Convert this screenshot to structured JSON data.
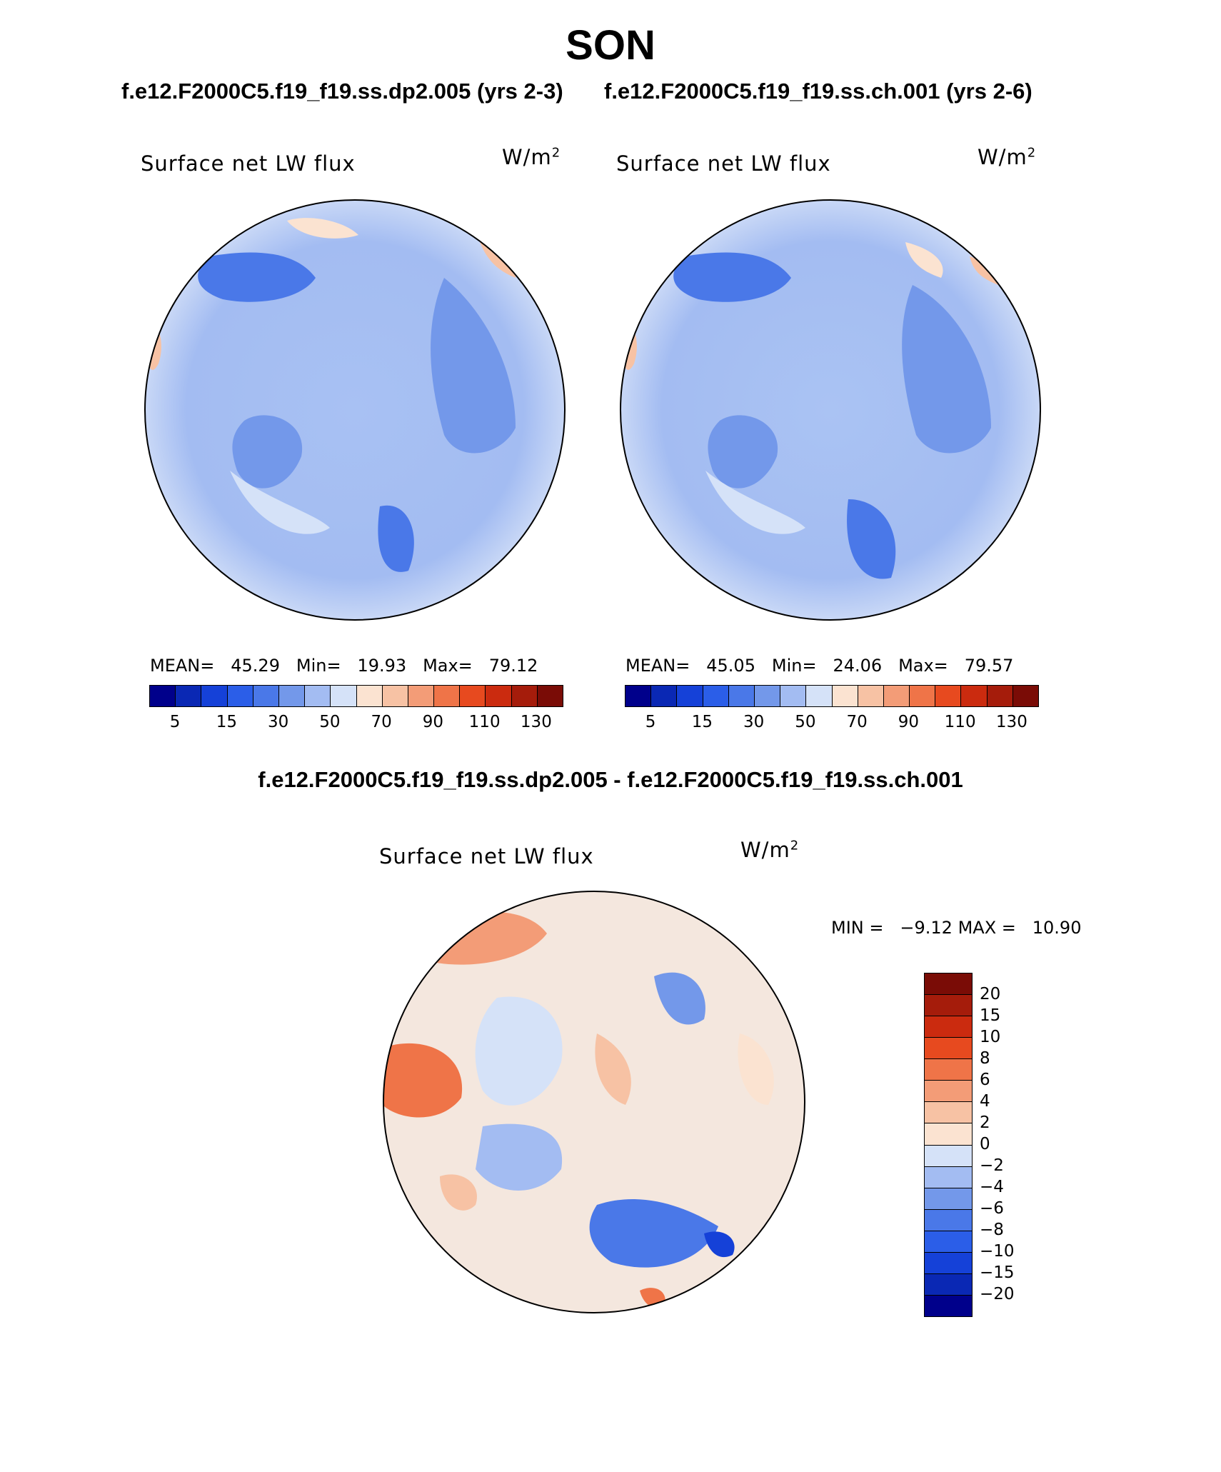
{
  "figure": {
    "title": "SON",
    "subtitle_left": "f.e12.F2000C5.f19_f19.ss.dp2.005 (yrs 2-3)",
    "subtitle_right": "f.e12.F2000C5.f19_f19.ss.ch.001 (yrs 2-6)",
    "difference_title": "f.e12.F2000C5.f19_f19.ss.dp2.005 - f.e12.F2000C5.f19_f19.ss.ch.001"
  },
  "panels": [
    {
      "variable": "Surface net LW flux",
      "units": "W/m",
      "units_exp": "2",
      "stats": {
        "mean_label": "MEAN=",
        "mean": "45.29",
        "min_label": "Min=",
        "min": "19.93",
        "max_label": "Max=",
        "max": "79.12"
      }
    },
    {
      "variable": "Surface net LW flux",
      "units": "W/m",
      "units_exp": "2",
      "stats": {
        "mean_label": "MEAN=",
        "mean": "45.05",
        "min_label": "Min=",
        "min": "24.06",
        "max_label": "Max=",
        "max": "79.57"
      }
    },
    {
      "variable": "Surface net LW flux",
      "units": "W/m",
      "units_exp": "2",
      "stats": {
        "min_label": "MIN =",
        "min": "−9.12",
        "max_label": "MAX =",
        "max": "10.90"
      }
    }
  ],
  "colorbar_abs": {
    "tick_labels": [
      "5",
      "15",
      "30",
      "50",
      "70",
      "90",
      "110",
      "130"
    ],
    "colors": [
      "#00008b",
      "#0a28b4",
      "#1541d8",
      "#2b5ee8",
      "#4a78e8",
      "#7398ea",
      "#a3bcf2",
      "#d5e2f8",
      "#fbe3d1",
      "#f7c2a4",
      "#f39c77",
      "#ef7448",
      "#e74a1f",
      "#cb2b0f",
      "#a51c0b",
      "#7a0c06"
    ]
  },
  "colorbar_diff": {
    "tick_labels": [
      "20",
      "15",
      "10",
      "8",
      "6",
      "4",
      "2",
      "0",
      "−2",
      "−4",
      "−6",
      "−8",
      "−10",
      "−15",
      "−20"
    ],
    "colors": [
      "#7a0c06",
      "#a51c0b",
      "#cb2b0f",
      "#e74a1f",
      "#ef7448",
      "#f39c77",
      "#f7c2a4",
      "#fbe3d1",
      "#d5e2f8",
      "#a3bcf2",
      "#7398ea",
      "#4a78e8",
      "#2b5ee8",
      "#1541d8",
      "#0a28b4",
      "#00008b"
    ]
  },
  "chart_data": [
    {
      "type": "heatmap",
      "title": "Surface net LW flux",
      "units": "W/m2",
      "case": "f.e12.F2000C5.f19_f19.ss.dp2.005 (yrs 2-3)",
      "mean": 45.29,
      "min": 19.93,
      "max": 79.12,
      "levels": [
        5,
        10,
        15,
        20,
        30,
        40,
        50,
        60,
        70,
        80,
        90,
        100,
        110,
        120,
        130
      ]
    },
    {
      "type": "heatmap",
      "title": "Surface net LW flux",
      "units": "W/m2",
      "case": "f.e12.F2000C5.f19_f19.ss.ch.001 (yrs 2-6)",
      "mean": 45.05,
      "min": 24.06,
      "max": 79.57,
      "levels": [
        5,
        10,
        15,
        20,
        30,
        40,
        50,
        60,
        70,
        80,
        90,
        100,
        110,
        120,
        130
      ]
    },
    {
      "type": "heatmap",
      "title": "Surface net LW flux",
      "units": "W/m2",
      "case": "f.e12.F2000C5.f19_f19.ss.dp2.005 - f.e12.F2000C5.f19_f19.ss.ch.001",
      "min": -9.12,
      "max": 10.9,
      "levels": [
        -20,
        -15,
        -10,
        -8,
        -6,
        -4,
        -2,
        0,
        2,
        4,
        6,
        8,
        10,
        15,
        20
      ]
    }
  ]
}
